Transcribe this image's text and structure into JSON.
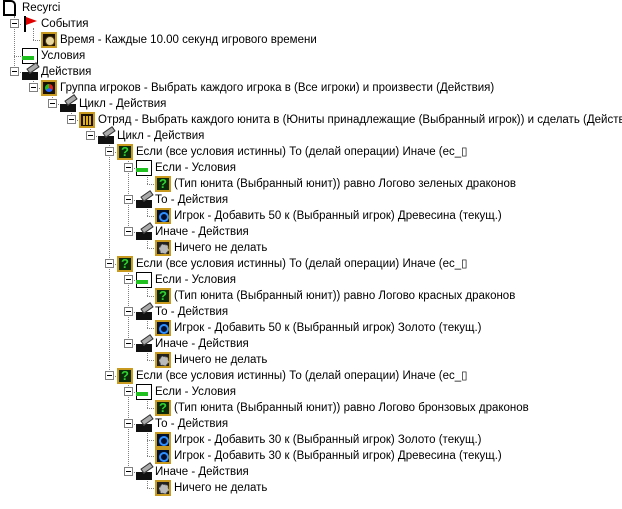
{
  "tree": [
    {
      "level": 0,
      "icon": "document-icon",
      "text": "Recyrci",
      "expandable": false
    },
    {
      "level": 1,
      "icon": "flag-icon",
      "text": "События",
      "expandable": true
    },
    {
      "level": 2,
      "icon": "clock-icon",
      "text": "Время - Каждые 10.00 секунд игрового времени",
      "expandable": false
    },
    {
      "level": 1,
      "icon": "condition-icon",
      "text": "Условия",
      "expandable": false
    },
    {
      "level": 1,
      "icon": "action-icon",
      "text": "Действия",
      "expandable": true
    },
    {
      "level": 2,
      "icon": "player-group-icon",
      "text": "Группа игроков - Выбрать каждого игрока в (Все игроки) и произвести (Действия)",
      "expandable": true
    },
    {
      "level": 3,
      "icon": "action-icon",
      "text": "Цикл - Действия",
      "expandable": true
    },
    {
      "level": 4,
      "icon": "unit-group-icon",
      "text": "Отряд - Выбрать каждого юнита в (Юниты принадлежащие (Выбранный игрок)) и сделать (Действия)",
      "expandable": true
    },
    {
      "level": 5,
      "icon": "action-icon",
      "text": "Цикл - Действия",
      "expandable": true
    },
    {
      "level": 6,
      "icon": "question-icon",
      "text": "Если (все условия истинны) То (делай операции) Иначе (ес_▯",
      "expandable": true
    },
    {
      "level": 7,
      "icon": "condition-icon",
      "text": "Если - Условия",
      "expandable": true
    },
    {
      "level": 8,
      "icon": "question-icon",
      "text": "(Тип юнита (Выбранный юнит)) равно Логово зеленых драконов",
      "expandable": false
    },
    {
      "level": 7,
      "icon": "action-icon",
      "text": "То - Действия",
      "expandable": true
    },
    {
      "level": 8,
      "icon": "player-icon",
      "text": "Игрок - Добавить 50 к (Выбранный игрок) Древесина (текущ.)",
      "expandable": false
    },
    {
      "level": 7,
      "icon": "action-icon",
      "text": "Иначе - Действия",
      "expandable": true
    },
    {
      "level": 8,
      "icon": "gear-icon",
      "text": "Ничего не делать",
      "expandable": false
    },
    {
      "level": 6,
      "icon": "question-icon",
      "text": "Если (все условия истинны) То (делай операции) Иначе (ес_▯",
      "expandable": true
    },
    {
      "level": 7,
      "icon": "condition-icon",
      "text": "Если - Условия",
      "expandable": true
    },
    {
      "level": 8,
      "icon": "question-icon",
      "text": "(Тип юнита (Выбранный юнит)) равно Логово красных драконов",
      "expandable": false
    },
    {
      "level": 7,
      "icon": "action-icon",
      "text": "То - Действия",
      "expandable": true
    },
    {
      "level": 8,
      "icon": "player-icon",
      "text": "Игрок - Добавить 50 к (Выбранный игрок) Золото (текущ.)",
      "expandable": false
    },
    {
      "level": 7,
      "icon": "action-icon",
      "text": "Иначе - Действия",
      "expandable": true
    },
    {
      "level": 8,
      "icon": "gear-icon",
      "text": "Ничего не делать",
      "expandable": false
    },
    {
      "level": 6,
      "icon": "question-icon",
      "text": "Если (все условия истинны) То (делай операции) Иначе (ес_▯",
      "expandable": true
    },
    {
      "level": 7,
      "icon": "condition-icon",
      "text": "Если - Условия",
      "expandable": true
    },
    {
      "level": 8,
      "icon": "question-icon",
      "text": "(Тип юнита (Выбранный юнит)) равно Логово бронзовых драконов",
      "expandable": false
    },
    {
      "level": 7,
      "icon": "action-icon",
      "text": "То - Действия",
      "expandable": true
    },
    {
      "level": 8,
      "icon": "player-icon",
      "text": "Игрок - Добавить 30 к (Выбранный игрок) Золото (текущ.)",
      "expandable": false
    },
    {
      "level": 8,
      "icon": "player-icon",
      "text": "Игрок - Добавить 30 к (Выбранный игрок) Древесина (текущ.)",
      "expandable": false
    },
    {
      "level": 7,
      "icon": "action-icon",
      "text": "Иначе - Действия",
      "expandable": true
    },
    {
      "level": 8,
      "icon": "gear-icon",
      "text": "Ничего не делать",
      "expandable": false
    }
  ]
}
